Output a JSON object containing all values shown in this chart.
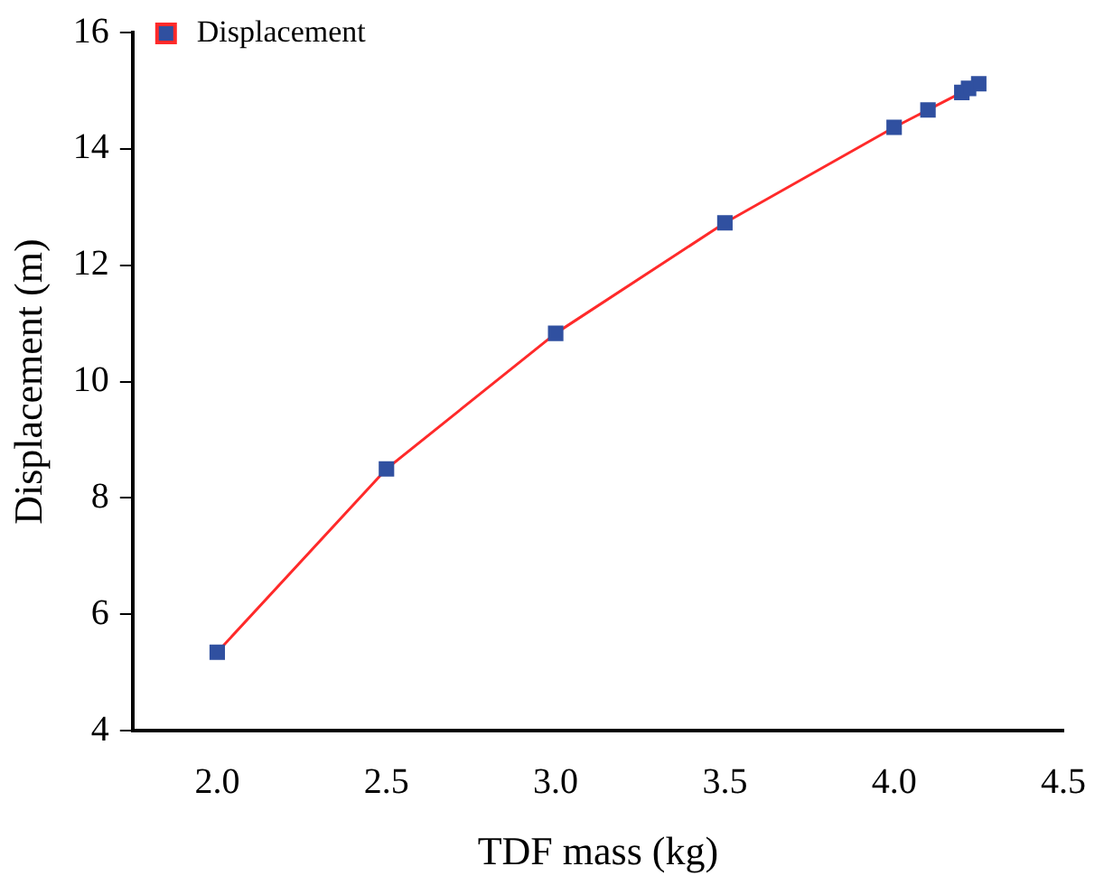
{
  "chart_data": {
    "type": "line",
    "xlabel": "TDF mass (kg)",
    "ylabel": "Displacement (m)",
    "series": [
      {
        "name": "Displacement",
        "color": "#ff2a2a",
        "colors": [
          "#3050a0",
          "#3050a0",
          "#3050a0",
          "#3050a0",
          "#3050a0",
          "#3050a0",
          "#3050a0",
          "#3050a0",
          "#3050a0"
        ],
        "x": [
          2.0,
          2.5,
          3.0,
          3.5,
          4.0,
          4.1,
          4.2,
          4.22,
          4.25
        ],
        "values": [
          5.35,
          8.5,
          10.83,
          12.73,
          14.37,
          14.67,
          14.97,
          15.04,
          15.12
        ]
      }
    ],
    "xlim": [
      1.75,
      4.5
    ],
    "xticks": [
      {
        "value": 2,
        "label": "2.0"
      },
      {
        "value": 2.5,
        "label": "2.5"
      },
      {
        "value": 3,
        "label": "3.0"
      },
      {
        "value": 3.5,
        "label": "3.5"
      },
      {
        "value": 4,
        "label": "4.0"
      },
      {
        "value": 4.5,
        "label": "4.5"
      }
    ],
    "ylim": [
      4,
      16
    ],
    "yticks": [
      4,
      6,
      8,
      10,
      12,
      14,
      16
    ],
    "marker": "square",
    "legend": "top left",
    "grid": false
  }
}
